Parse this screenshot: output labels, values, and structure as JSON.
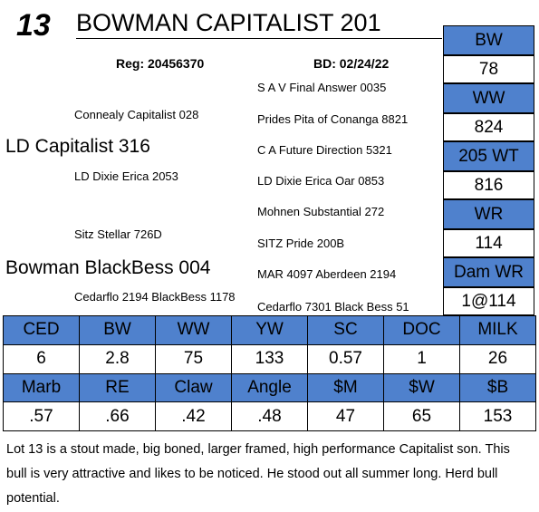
{
  "header": {
    "lot_number": "13",
    "animal_name": "BOWMAN CAPITALIST 201",
    "reg": "Reg: 20456370",
    "birth_date": "BD: 02/24/22"
  },
  "pedigree": {
    "sire": "LD Capitalist 316",
    "dam": "Bowman BlackBess 004",
    "sire_sire": "Connealy Capitalist 028",
    "sire_dam": "LD Dixie Erica 2053",
    "dam_sire": "Sitz Stellar 726D",
    "dam_dam": "Cedarflo 2194 BlackBess 1178",
    "gen3": [
      "S A V Final Answer 0035",
      "Prides Pita of Conanga 8821",
      "C A Future Direction 5321",
      "LD Dixie Erica Oar 0853",
      "Mohnen Substantial 272",
      "SITZ Pride 200B",
      "MAR 4097 Aberdeen 2194",
      "Cedarflo 7301 Black Bess 51"
    ]
  },
  "performance": [
    {
      "label": "BW",
      "value": "78"
    },
    {
      "label": "WW",
      "value": "824"
    },
    {
      "label": "205 WT",
      "value": "816"
    },
    {
      "label": "WR",
      "value": "114"
    },
    {
      "label": "Dam WR",
      "value": "1@114"
    }
  ],
  "epds": {
    "row1_labels": [
      "CED",
      "BW",
      "WW",
      "YW",
      "SC",
      "DOC",
      "MILK"
    ],
    "row1_values": [
      "6",
      "2.8",
      "75",
      "133",
      "0.57",
      "1",
      "26"
    ],
    "row2_labels": [
      "Marb",
      "RE",
      "Claw",
      "Angle",
      "$M",
      "$W",
      "$B"
    ],
    "row2_values": [
      ".57",
      ".66",
      ".42",
      ".48",
      "47",
      "65",
      "153"
    ]
  },
  "description": "Lot 13 is a stout made, big boned, larger framed, high performance Capitalist son.  This bull is very attractive and likes to be noticed.  He stood out all summer long.  Herd bull potential.",
  "colors": {
    "header_fill": "#4f81cd"
  }
}
